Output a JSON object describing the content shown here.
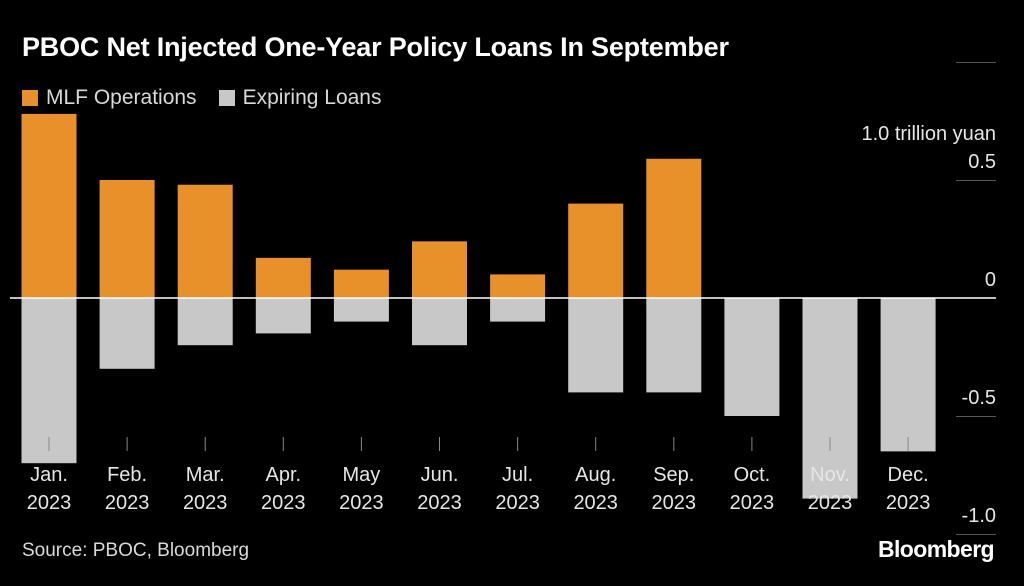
{
  "colors": {
    "background": "#000000",
    "mlf": "#e8912a",
    "expiring": "#c8c8c8",
    "gridline": "#555555",
    "zero_line": "#ffffff"
  },
  "chart_data": {
    "type": "bar",
    "title": "PBOC Net Injected One-Year Policy Loans In September",
    "unit_label": "1.0 trillion yuan",
    "ylim": [
      -1.0,
      1.0
    ],
    "yticks": [
      {
        "value": 0.5,
        "label": "0.5"
      },
      {
        "value": 0,
        "label": "0"
      },
      {
        "value": -0.5,
        "label": "-0.5"
      },
      {
        "value": -1.0,
        "label": "-1.0"
      }
    ],
    "categories": [
      [
        "Jan.",
        "2023"
      ],
      [
        "Feb.",
        "2023"
      ],
      [
        "Mar.",
        "2023"
      ],
      [
        "Apr.",
        "2023"
      ],
      [
        "May",
        "2023"
      ],
      [
        "Jun.",
        "2023"
      ],
      [
        "Jul.",
        "2023"
      ],
      [
        "Aug.",
        "2023"
      ],
      [
        "Sep.",
        "2023"
      ],
      [
        "Oct.",
        "2023"
      ],
      [
        "Nov.",
        "2023"
      ],
      [
        "Dec.",
        "2023"
      ]
    ],
    "series": [
      {
        "name": "MLF Operations",
        "values": [
          0.78,
          0.5,
          0.48,
          0.17,
          0.12,
          0.24,
          0.1,
          0.4,
          0.59,
          null,
          null,
          null
        ]
      },
      {
        "name": "Expiring Loans",
        "values": [
          -0.7,
          -0.3,
          -0.2,
          -0.15,
          -0.1,
          -0.2,
          -0.1,
          -0.4,
          -0.4,
          -0.5,
          -0.85,
          -0.65
        ]
      }
    ],
    "xlabel": "",
    "ylabel": ""
  },
  "legend": {
    "items": [
      {
        "label": "MLF Operations",
        "color": "#e8912a"
      },
      {
        "label": "Expiring Loans",
        "color": "#c8c8c8"
      }
    ]
  },
  "source": "Source: PBOC, Bloomberg",
  "brand": "Bloomberg"
}
